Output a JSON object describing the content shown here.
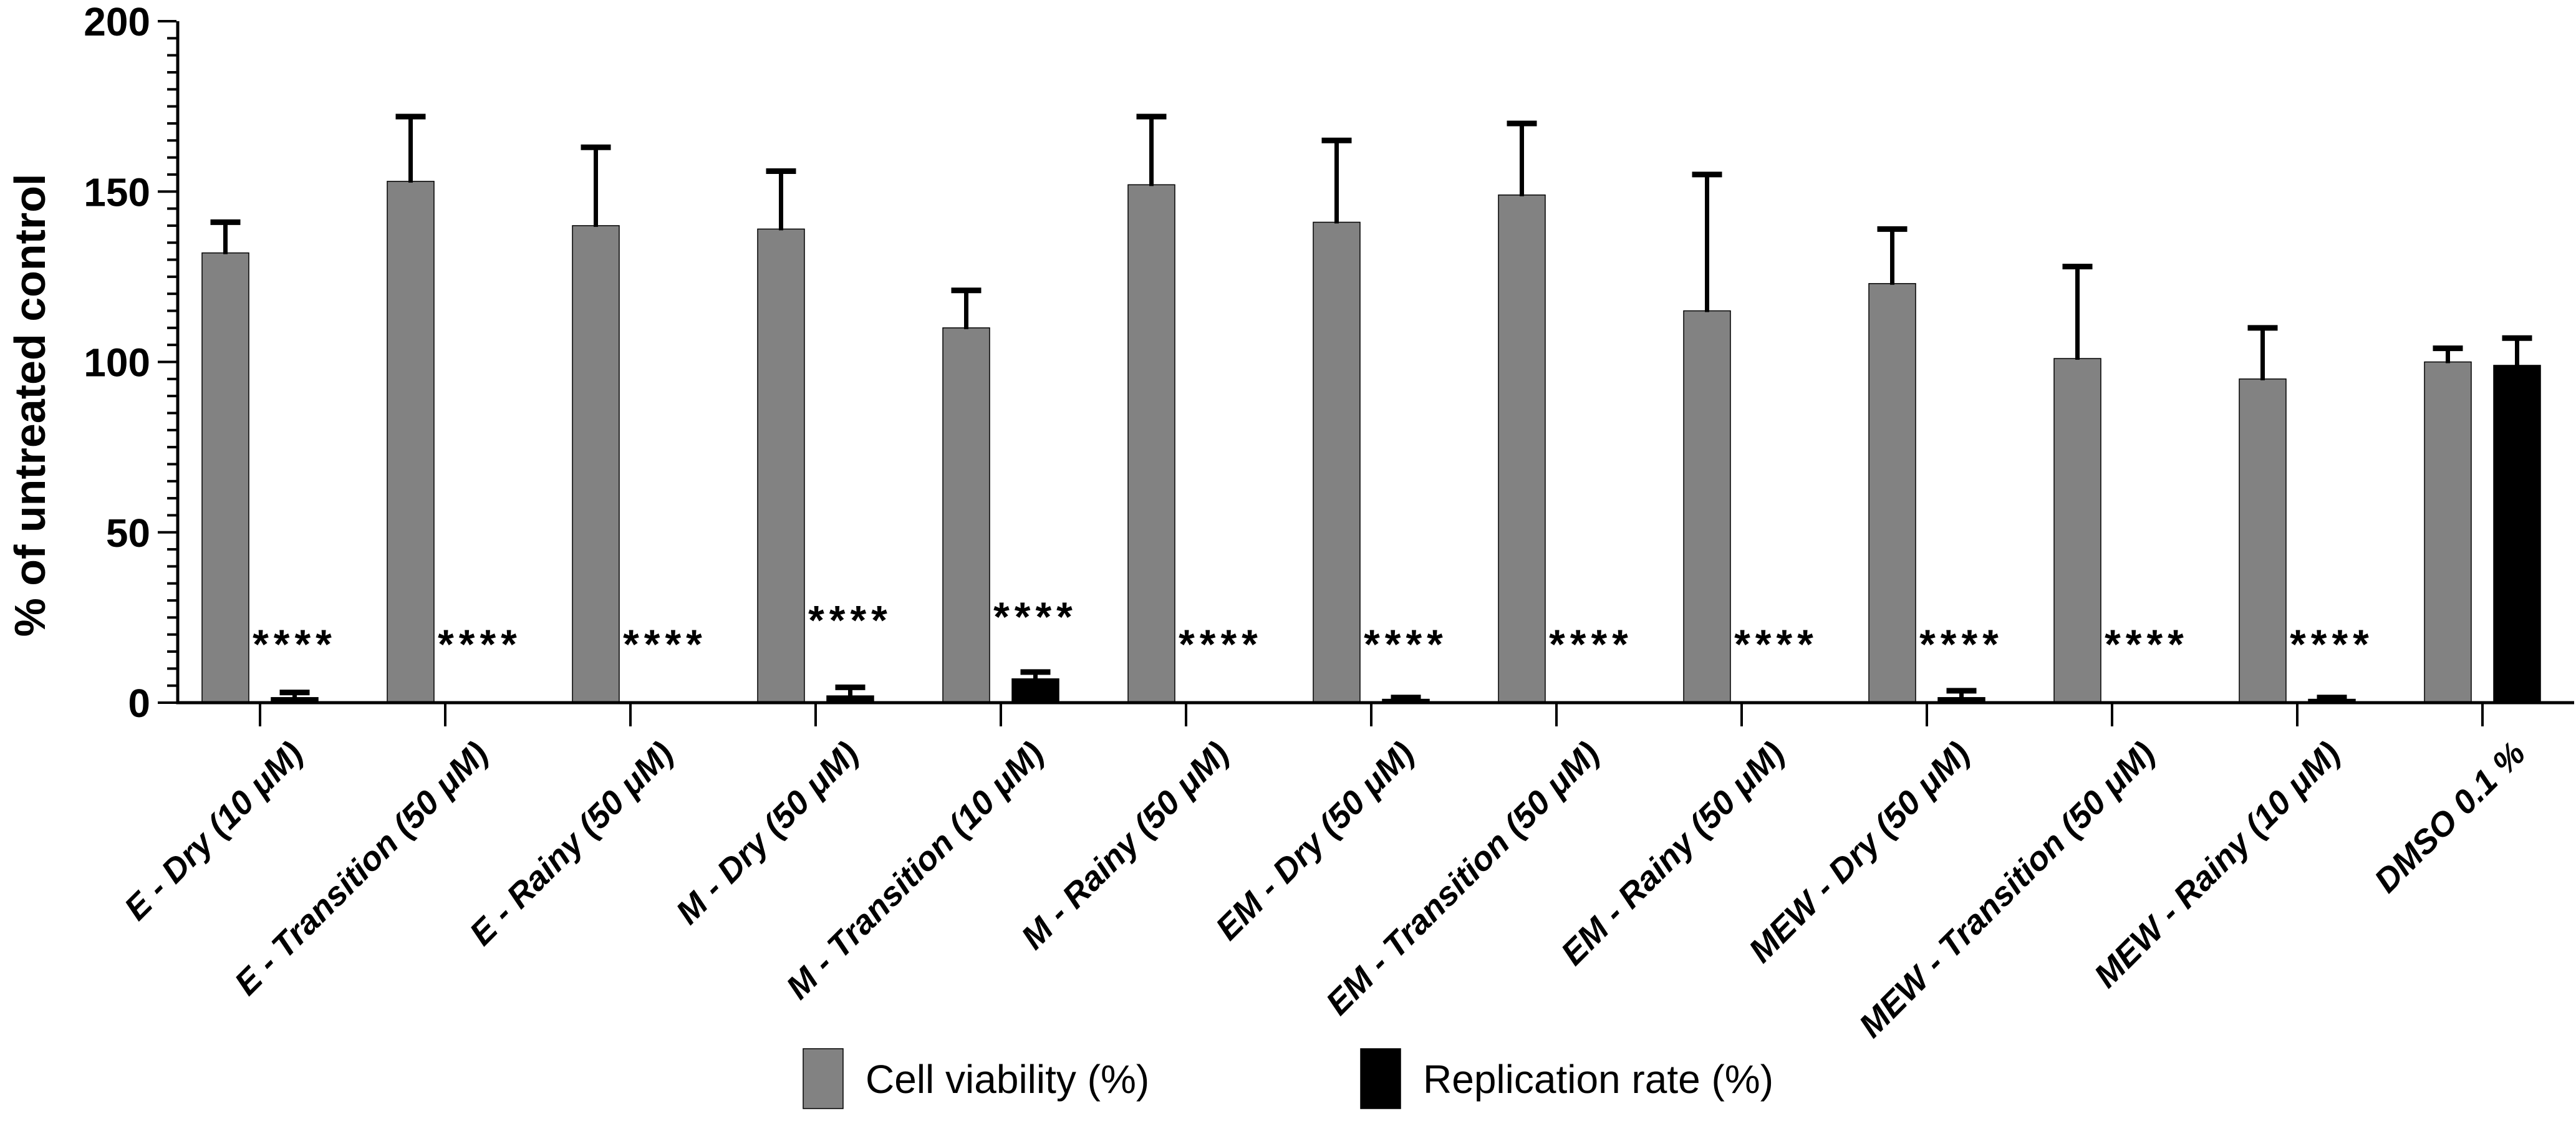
{
  "figure": {
    "background": "#ffffff",
    "axis_color": "#000000"
  },
  "chart_data": {
    "type": "bar",
    "title": "",
    "xlabel": "",
    "ylabel": "% of untreated control",
    "ylim": [
      0,
      200
    ],
    "yticks_major": [
      0,
      50,
      100,
      150,
      200
    ],
    "ytick_minor_step": 5,
    "grid": false,
    "legend_position": "bottom",
    "bar_style": "grouped",
    "error_bars": "upper",
    "categories": [
      "E - Dry (10 μM)",
      "E - Transition (50 μM)",
      "E - Rainy (50 μM)",
      "M - Dry (50 μM)",
      "M - Transition (10 μM)",
      "M - Rainy (50 μM)",
      "EM - Dry (50 μM)",
      "EM - Transition (50 μM)",
      "EM - Rainy (50 μM)",
      "MEW - Dry (50 μM)",
      "MEW - Transition (50 μM)",
      "MEW - Rainy (10 μM)",
      "DMSO 0.1 %"
    ],
    "series": [
      {
        "name": "Cell viability (%)",
        "color": "#828282",
        "values": [
          132,
          153,
          140,
          139,
          110,
          152,
          141,
          149,
          115,
          123,
          101,
          95,
          100
        ],
        "errors_plus": [
          9,
          19,
          23,
          17,
          11,
          20,
          24,
          21,
          40,
          16,
          27,
          15,
          4
        ]
      },
      {
        "name": "Replication rate (%)",
        "color": "#000000",
        "values": [
          1.5,
          0,
          0,
          2,
          7,
          0,
          1,
          0,
          0,
          1.5,
          0,
          1,
          99
        ],
        "errors_plus": [
          1.5,
          0,
          0,
          2.5,
          2,
          0,
          0.5,
          0,
          0,
          2,
          0,
          0.5,
          8
        ]
      }
    ],
    "significance_label": "****",
    "significance_y": [
      13,
      13,
      13,
      20,
      21,
      13,
      13,
      13,
      13,
      13,
      13,
      13,
      null
    ]
  },
  "legend": {
    "items": [
      {
        "label": "Cell viability (%)",
        "color": "#828282"
      },
      {
        "label": "Replication rate (%)",
        "color": "#000000"
      }
    ]
  }
}
